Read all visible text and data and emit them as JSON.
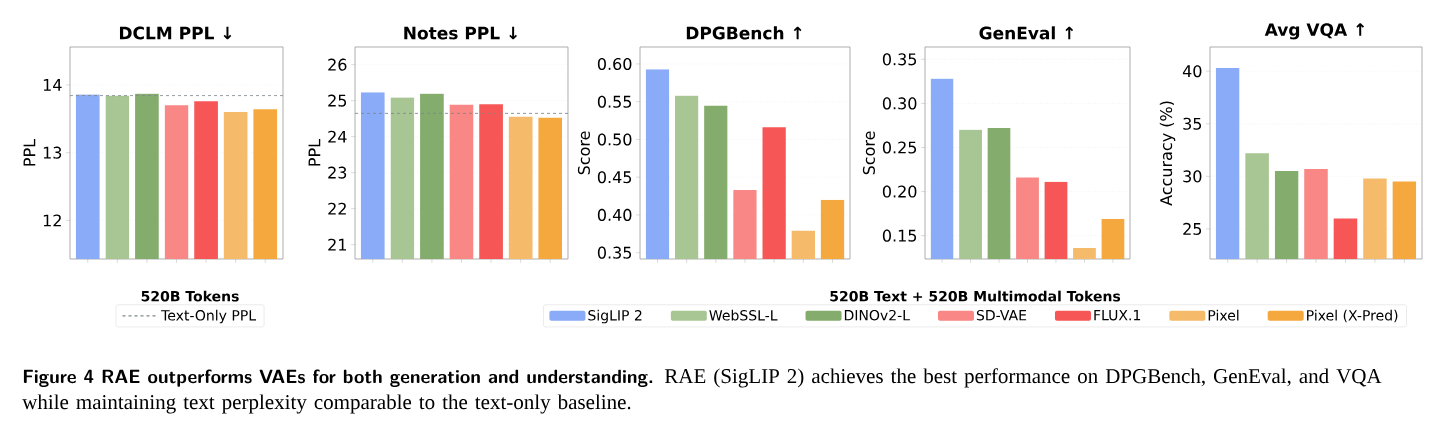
{
  "chart_data": [
    {
      "type": "bar",
      "title": "DCLM PPL ↓",
      "ylabel": "PPL",
      "categories": [
        null,
        null,
        null,
        null,
        null,
        null,
        null
      ],
      "ylim": [
        11.43,
        14.56
      ],
      "yticks": [
        12,
        13,
        14
      ],
      "grid": "y",
      "legend": "bottom",
      "legend_title": "520B Tokens",
      "series": [
        {
          "color": "#8aabf7",
          "values": [
            13.86,
            null,
            null,
            null,
            null,
            null,
            null
          ]
        },
        {
          "color": "#a8c694",
          "values": [
            null,
            13.84,
            null,
            null,
            null,
            null,
            null
          ]
        },
        {
          "color": "#84ac6c",
          "values": [
            null,
            null,
            13.87,
            null,
            null,
            null,
            null
          ]
        },
        {
          "color": "#f88785",
          "values": [
            null,
            null,
            null,
            13.7,
            null,
            null,
            null
          ]
        },
        {
          "color": "#f65656",
          "values": [
            null,
            null,
            null,
            null,
            13.76,
            null,
            null
          ]
        },
        {
          "color": "#f5bb6b",
          "values": [
            null,
            null,
            null,
            null,
            null,
            13.6,
            null
          ]
        },
        {
          "color": "#f4a83d",
          "values": [
            null,
            null,
            null,
            null,
            null,
            null,
            13.64
          ]
        }
      ],
      "ref_lines": [
        {
          "axis": "y",
          "value": 13.84,
          "label": "Text-Only PPL",
          "color": "#7f878a",
          "line_style": "dashed"
        }
      ],
      "annotations": [
        "Figure 4  RAE outperforms VAEs for both generation and understanding.",
        "RAE (SigLIP 2) achieves the best performance on DPGBench, GenEval, and VQA while maintaining text perplexity comparable to the text-only baseline."
      ]
    },
    {
      "type": "bar",
      "title": "Notes PPL ↓",
      "ylabel": "PPL",
      "categories": [
        null,
        null,
        null,
        null,
        null,
        null,
        null
      ],
      "ylim": [
        20.6,
        26.49
      ],
      "yticks": [
        21,
        22,
        23,
        24,
        25,
        26
      ],
      "grid": "y",
      "series": [
        {
          "color": "#8aabf7",
          "values": [
            25.23,
            null,
            null,
            null,
            null,
            null,
            null
          ]
        },
        {
          "color": "#a8c694",
          "values": [
            null,
            25.09,
            null,
            null,
            null,
            null,
            null
          ]
        },
        {
          "color": "#84ac6c",
          "values": [
            null,
            null,
            25.19,
            null,
            null,
            null,
            null
          ]
        },
        {
          "color": "#f88785",
          "values": [
            null,
            null,
            null,
            24.89,
            null,
            null,
            null
          ]
        },
        {
          "color": "#f65656",
          "values": [
            null,
            null,
            null,
            null,
            24.9,
            null,
            null
          ]
        },
        {
          "color": "#f5bb6b",
          "values": [
            null,
            null,
            null,
            null,
            null,
            24.56,
            null
          ]
        },
        {
          "color": "#f4a83d",
          "values": [
            null,
            null,
            null,
            null,
            null,
            null,
            24.53
          ]
        }
      ],
      "ref_lines": [
        {
          "axis": "y",
          "value": 24.65,
          "color": "#7f878a",
          "line_style": "dashed"
        }
      ]
    },
    {
      "type": "bar",
      "title": "DPGBench ↑",
      "ylabel": "Score",
      "categories": [
        null,
        null,
        null,
        null,
        null,
        null,
        null
      ],
      "ylim": [
        0.3416,
        0.6225
      ],
      "yticks": [
        {
          "value": 0.35,
          "label": "0.35"
        },
        {
          "value": 0.4,
          "label": "0.40"
        },
        {
          "value": 0.45,
          "label": "0.45"
        },
        {
          "value": 0.5,
          "label": "0.50"
        },
        {
          "value": 0.55,
          "label": "0.55"
        },
        {
          "value": 0.6,
          "label": "0.60"
        }
      ],
      "grid": "y",
      "legend": "bottom",
      "legend_title": "520B Text + 520B Multimodal Tokens",
      "series": [
        {
          "name": "SigLIP 2",
          "color": "#8aabf7",
          "values": [
            0.593,
            null,
            null,
            null,
            null,
            null,
            null
          ]
        },
        {
          "name": "WebSSL-L",
          "color": "#a8c694",
          "values": [
            null,
            0.558,
            null,
            null,
            null,
            null,
            null
          ]
        },
        {
          "name": "DINOv2-L",
          "color": "#84ac6c",
          "values": [
            null,
            null,
            0.545,
            null,
            null,
            null,
            null
          ]
        },
        {
          "name": "SD-VAE",
          "color": "#f88785",
          "values": [
            null,
            null,
            null,
            0.433,
            null,
            null,
            null
          ]
        },
        {
          "name": "FLUX.1",
          "color": "#f65656",
          "values": [
            null,
            null,
            null,
            null,
            0.516,
            null,
            null
          ]
        },
        {
          "name": "Pixel",
          "color": "#f5bb6b",
          "values": [
            null,
            null,
            null,
            null,
            null,
            0.379,
            null
          ]
        },
        {
          "name": "Pixel (X-Pred)",
          "color": "#f4a83d",
          "values": [
            null,
            null,
            null,
            null,
            null,
            null,
            0.42
          ]
        }
      ]
    },
    {
      "type": "bar",
      "title": "GenEval ↑",
      "ylabel": "Score",
      "categories": [
        null,
        null,
        null,
        null,
        null,
        null,
        null
      ],
      "ylim": [
        0.1235,
        0.364
      ],
      "yticks": [
        {
          "value": 0.15,
          "label": "0.15"
        },
        {
          "value": 0.2,
          "label": "0.20"
        },
        {
          "value": 0.25,
          "label": "0.25"
        },
        {
          "value": 0.3,
          "label": "0.30"
        },
        {
          "value": 0.35,
          "label": "0.35"
        }
      ],
      "grid": "y",
      "series": [
        {
          "color": "#8aabf7",
          "values": [
            0.328,
            null,
            null,
            null,
            null,
            null,
            null
          ]
        },
        {
          "color": "#a8c694",
          "values": [
            null,
            0.27,
            null,
            null,
            null,
            null,
            null
          ]
        },
        {
          "color": "#84ac6c",
          "values": [
            null,
            null,
            0.272,
            null,
            null,
            null,
            null
          ]
        },
        {
          "color": "#f88785",
          "values": [
            null,
            null,
            null,
            0.216,
            null,
            null,
            null
          ]
        },
        {
          "color": "#f65656",
          "values": [
            null,
            null,
            null,
            null,
            0.211,
            null,
            null
          ]
        },
        {
          "color": "#f5bb6b",
          "values": [
            null,
            null,
            null,
            null,
            null,
            0.136,
            null
          ]
        },
        {
          "color": "#f4a83d",
          "values": [
            null,
            null,
            null,
            null,
            null,
            null,
            0.169
          ]
        }
      ]
    },
    {
      "type": "bar",
      "title": "Avg VQA ↑",
      "ylabel": "Accuracy (%)",
      "categories": [
        null,
        null,
        null,
        null,
        null,
        null,
        null
      ],
      "ylim": [
        22.14,
        42.3
      ],
      "yticks": [
        25,
        30,
        35,
        40
      ],
      "grid": "y",
      "series": [
        {
          "color": "#8aabf7",
          "values": [
            40.3,
            null,
            null,
            null,
            null,
            null,
            null
          ]
        },
        {
          "color": "#a8c694",
          "values": [
            null,
            32.2,
            null,
            null,
            null,
            null,
            null
          ]
        },
        {
          "color": "#84ac6c",
          "values": [
            null,
            null,
            30.5,
            null,
            null,
            null,
            null
          ]
        },
        {
          "color": "#f88785",
          "values": [
            null,
            null,
            null,
            30.7,
            null,
            null,
            null
          ]
        },
        {
          "color": "#f65656",
          "values": [
            null,
            null,
            null,
            null,
            26.0,
            null,
            null
          ]
        },
        {
          "color": "#f5bb6b",
          "values": [
            null,
            null,
            null,
            null,
            null,
            29.8,
            null
          ]
        },
        {
          "color": "#f4a83d",
          "values": [
            null,
            null,
            null,
            null,
            null,
            null,
            29.5
          ]
        }
      ]
    }
  ]
}
